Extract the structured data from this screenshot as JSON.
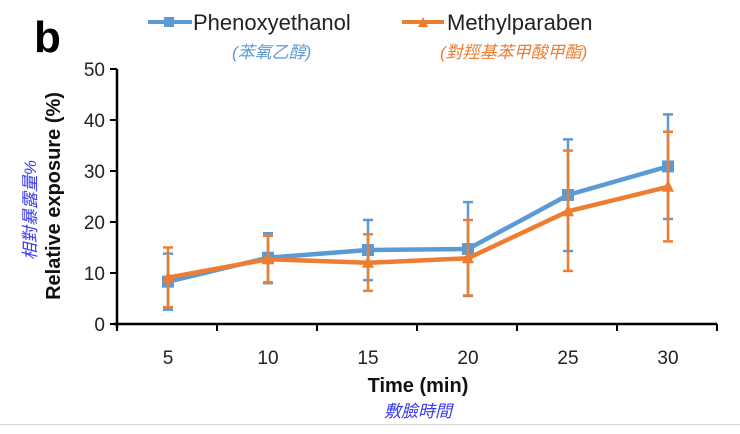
{
  "panel_label": "b",
  "chart_data": {
    "type": "line",
    "title": "",
    "xlabel": "Time (min)",
    "xlabel_zh": "敷臉時間",
    "ylabel": "Relative exposure (%)",
    "ylabel_zh": "相對暴露量%",
    "x": [
      5,
      10,
      15,
      20,
      25,
      30
    ],
    "x_tick_labels": [
      "5",
      "10",
      "15",
      "20",
      "25",
      "30"
    ],
    "ylim": [
      0,
      50
    ],
    "y_ticks": [
      0,
      10,
      20,
      30,
      40,
      50
    ],
    "y_tick_labels": [
      "0",
      "10",
      "20",
      "30",
      "40",
      "50"
    ],
    "grid": false,
    "legend_position": "top",
    "series": [
      {
        "name": "Phenoxyethanol",
        "name_zh": "(苯氧乙醇)",
        "color": "#5b9bd5",
        "marker": "square",
        "values": [
          8.3,
          13.0,
          14.5,
          14.7,
          25.3,
          30.9
        ],
        "error_low": [
          2.8,
          8.0,
          8.6,
          5.5,
          14.3,
          20.6
        ],
        "error_high": [
          13.8,
          17.8,
          20.4,
          23.9,
          36.2,
          41.1
        ]
      },
      {
        "name": "Methylparaben",
        "name_zh": "(對羥基苯甲酸甲酯)",
        "color": "#ed7d31",
        "marker": "triangle",
        "values": [
          9.1,
          12.7,
          12.0,
          12.9,
          22.1,
          26.9
        ],
        "error_low": [
          3.3,
          8.2,
          6.5,
          5.6,
          10.4,
          16.2
        ],
        "error_high": [
          15.0,
          17.3,
          17.6,
          20.4,
          34.0,
          37.7
        ]
      }
    ],
    "annotation_color": "#3a3af0"
  }
}
